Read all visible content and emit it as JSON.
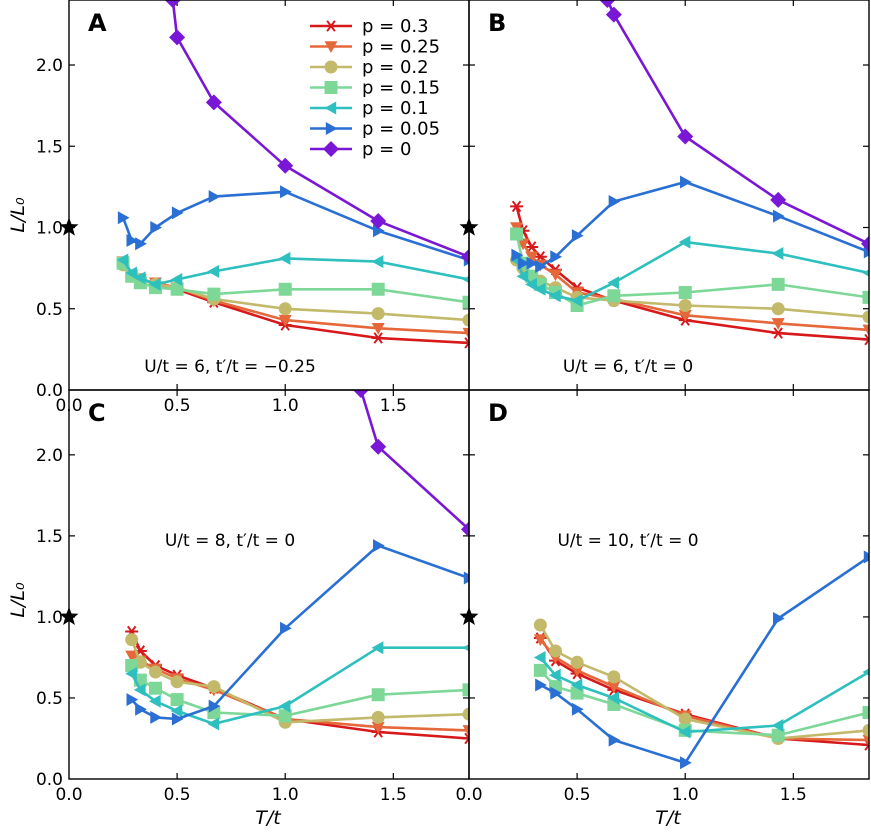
{
  "figure": {
    "ylabel": "L/L₀",
    "xlabel": "T/t"
  },
  "chart_data": [
    {
      "panel": "A",
      "type": "line",
      "annotation": "U/t = 6, t′/t = −0.25",
      "xlim": [
        0,
        1.85
      ],
      "ylim": [
        0,
        2.4
      ],
      "xticks": [
        0.0,
        0.5,
        1.0,
        1.5
      ],
      "xticklabels": [
        "0.0",
        "0.5",
        "1.0",
        "1.5"
      ],
      "yticks": [
        0.0,
        0.5,
        1.0,
        1.5,
        2.0
      ],
      "yticklabels": [
        "0.0",
        "0.5",
        "1.0",
        "1.5",
        "2.0"
      ],
      "reference_star": {
        "x": 0,
        "y": 1.0
      },
      "series": [
        {
          "name": "p = 0.3",
          "p": 0.3,
          "x": [
            0.4,
            0.5,
            0.67,
            1.0,
            1.43,
            1.85
          ],
          "y": [
            0.64,
            0.62,
            0.54,
            0.4,
            0.32,
            0.29
          ]
        },
        {
          "name": "p = 0.25",
          "p": 0.25,
          "x": [
            0.25,
            0.29,
            0.33,
            0.4,
            0.5,
            0.67,
            1.0,
            1.43,
            1.85
          ],
          "y": [
            0.79,
            0.71,
            0.68,
            0.66,
            0.63,
            0.55,
            0.43,
            0.38,
            0.35
          ]
        },
        {
          "name": "p = 0.2",
          "p": 0.2,
          "x": [
            0.25,
            0.29,
            0.33,
            0.4,
            0.5,
            0.67,
            1.0,
            1.43,
            1.85
          ],
          "y": [
            0.77,
            0.7,
            0.68,
            0.65,
            0.63,
            0.56,
            0.5,
            0.47,
            0.43
          ]
        },
        {
          "name": "p = 0.15",
          "p": 0.15,
          "x": [
            0.25,
            0.29,
            0.33,
            0.4,
            0.5,
            0.67,
            1.0,
            1.43,
            1.85
          ],
          "y": [
            0.78,
            0.7,
            0.66,
            0.63,
            0.62,
            0.59,
            0.62,
            0.62,
            0.54
          ]
        },
        {
          "name": "p = 0.1",
          "p": 0.1,
          "x": [
            0.25,
            0.29,
            0.33,
            0.4,
            0.5,
            0.67,
            1.0,
            1.43,
            1.85
          ],
          "y": [
            0.8,
            0.72,
            0.69,
            0.65,
            0.68,
            0.73,
            0.81,
            0.79,
            0.68
          ]
        },
        {
          "name": "p = 0.05",
          "p": 0.05,
          "x": [
            0.25,
            0.29,
            0.33,
            0.4,
            0.5,
            0.67,
            1.0,
            1.43,
            1.85
          ],
          "y": [
            1.06,
            0.92,
            0.9,
            1.0,
            1.09,
            1.19,
            1.22,
            0.98,
            0.8
          ]
        },
        {
          "name": "p = 0",
          "p": 0.0,
          "x": [
            0.48,
            0.5,
            0.67,
            1.0,
            1.43,
            1.85
          ],
          "y": [
            2.4,
            2.17,
            1.77,
            1.38,
            1.04,
            0.82
          ]
        }
      ]
    },
    {
      "panel": "B",
      "type": "line",
      "annotation": "U/t = 6, t′/t = 0",
      "xlim": [
        0,
        1.85
      ],
      "ylim": [
        0,
        2.4
      ],
      "reference_star": {
        "x": 0,
        "y": 1.0
      },
      "series": [
        {
          "name": "p = 0.3",
          "p": 0.3,
          "x": [
            0.22,
            0.25,
            0.29,
            0.33,
            0.4,
            0.5,
            0.67,
            1.0,
            1.43,
            1.85
          ],
          "y": [
            1.13,
            0.98,
            0.88,
            0.82,
            0.74,
            0.63,
            0.55,
            0.43,
            0.35,
            0.31
          ]
        },
        {
          "name": "p = 0.25",
          "p": 0.25,
          "x": [
            0.22,
            0.25,
            0.29,
            0.33,
            0.4,
            0.5,
            0.67,
            1.0,
            1.43,
            1.85
          ],
          "y": [
            1.0,
            0.9,
            0.82,
            0.77,
            0.71,
            0.6,
            0.56,
            0.46,
            0.41,
            0.37
          ]
        },
        {
          "name": "p = 0.2",
          "p": 0.2,
          "x": [
            0.22,
            0.25,
            0.29,
            0.33,
            0.4,
            0.5,
            0.67,
            1.0,
            1.43,
            1.85
          ],
          "y": [
            0.8,
            0.75,
            0.7,
            0.67,
            0.63,
            0.57,
            0.55,
            0.52,
            0.5,
            0.45
          ]
        },
        {
          "name": "p = 0.15",
          "p": 0.15,
          "x": [
            0.22,
            0.25,
            0.29,
            0.33,
            0.4,
            0.5,
            0.67,
            1.0,
            1.43,
            1.85
          ],
          "y": [
            0.96,
            0.78,
            0.7,
            0.65,
            0.6,
            0.52,
            0.58,
            0.6,
            0.65,
            0.57
          ]
        },
        {
          "name": "p = 0.1",
          "p": 0.1,
          "x": [
            0.22,
            0.25,
            0.29,
            0.33,
            0.4,
            0.5,
            0.67,
            1.0,
            1.43,
            1.85
          ],
          "y": [
            0.8,
            0.7,
            0.65,
            0.62,
            0.58,
            0.55,
            0.66,
            0.91,
            0.84,
            0.72
          ]
        },
        {
          "name": "p = 0.05",
          "p": 0.05,
          "x": [
            0.22,
            0.25,
            0.29,
            0.33,
            0.4,
            0.5,
            0.67,
            1.0,
            1.43,
            1.85
          ],
          "y": [
            0.83,
            0.78,
            0.78,
            0.76,
            0.82,
            0.95,
            1.16,
            1.28,
            1.07,
            0.85
          ]
        },
        {
          "name": "p = 0",
          "p": 0.0,
          "x": [
            0.64,
            0.67,
            1.0,
            1.43,
            1.85
          ],
          "y": [
            2.4,
            2.31,
            1.56,
            1.17,
            0.9
          ]
        }
      ]
    },
    {
      "panel": "C",
      "type": "line",
      "annotation": "U/t = 8, t′/t = 0",
      "xlim": [
        0,
        1.85
      ],
      "ylim": [
        0,
        2.4
      ],
      "xticks": [
        0.0,
        0.5,
        1.0,
        1.5
      ],
      "xticklabels": [
        "0.0",
        "0.5",
        "1.0",
        "1.5"
      ],
      "yticks": [
        0.0,
        0.5,
        1.0,
        1.5,
        2.0
      ],
      "yticklabels": [
        "0.0",
        "0.5",
        "1.0",
        "1.5",
        "2.0"
      ],
      "reference_star": {
        "x": 0,
        "y": 1.0
      },
      "series": [
        {
          "name": "p = 0.3",
          "p": 0.3,
          "x": [
            0.29,
            0.33,
            0.4,
            0.5,
            0.67,
            1.0,
            1.43,
            1.85
          ],
          "y": [
            0.91,
            0.79,
            0.7,
            0.64,
            0.56,
            0.37,
            0.29,
            0.25
          ]
        },
        {
          "name": "p = 0.25",
          "p": 0.25,
          "x": [
            0.29,
            0.33,
            0.4,
            0.5,
            0.67,
            1.0,
            1.43,
            1.85
          ],
          "y": [
            0.76,
            0.73,
            0.68,
            0.62,
            0.55,
            0.37,
            0.32,
            0.3
          ]
        },
        {
          "name": "p = 0.2",
          "p": 0.2,
          "x": [
            0.29,
            0.33,
            0.4,
            0.5,
            0.67,
            1.0,
            1.43,
            1.85
          ],
          "y": [
            0.86,
            0.72,
            0.66,
            0.6,
            0.57,
            0.35,
            0.38,
            0.4
          ]
        },
        {
          "name": "p = 0.15",
          "p": 0.15,
          "x": [
            0.29,
            0.33,
            0.4,
            0.5,
            0.67,
            1.0,
            1.43,
            1.85
          ],
          "y": [
            0.7,
            0.61,
            0.56,
            0.49,
            0.41,
            0.39,
            0.52,
            0.55
          ]
        },
        {
          "name": "p = 0.1",
          "p": 0.1,
          "x": [
            0.29,
            0.33,
            0.4,
            0.5,
            0.67,
            1.0,
            1.43,
            1.85
          ],
          "y": [
            0.65,
            0.55,
            0.48,
            0.42,
            0.34,
            0.45,
            0.81,
            0.81
          ]
        },
        {
          "name": "p = 0.05",
          "p": 0.05,
          "x": [
            0.29,
            0.33,
            0.4,
            0.5,
            0.67,
            1.0,
            1.43,
            1.85
          ],
          "y": [
            0.49,
            0.43,
            0.38,
            0.37,
            0.45,
            0.93,
            1.44,
            1.24
          ]
        },
        {
          "name": "p = 0",
          "p": 0.0,
          "x": [
            1.35,
            1.43,
            1.85
          ],
          "y": [
            2.4,
            2.05,
            1.54
          ]
        }
      ]
    },
    {
      "panel": "D",
      "type": "line",
      "annotation": "U/t = 10, t′/t = 0",
      "xlim": [
        0,
        1.85
      ],
      "ylim": [
        0,
        2.4
      ],
      "xticks": [
        0.0,
        0.5,
        1.0,
        1.5
      ],
      "xticklabels": [
        "0.0",
        "0.5",
        "1.0",
        "1.5"
      ],
      "reference_star": {
        "x": 0,
        "y": 1.0
      },
      "series": [
        {
          "name": "p = 0.3",
          "p": 0.3,
          "x": [
            0.33,
            0.4,
            0.5,
            0.67,
            1.0,
            1.43,
            1.85
          ],
          "y": [
            0.87,
            0.73,
            0.65,
            0.55,
            0.4,
            0.25,
            0.21
          ]
        },
        {
          "name": "p = 0.25",
          "p": 0.25,
          "x": [
            0.33,
            0.4,
            0.5,
            0.67,
            1.0,
            1.43,
            1.85
          ],
          "y": [
            0.86,
            0.75,
            0.67,
            0.57,
            0.39,
            0.25,
            0.24
          ]
        },
        {
          "name": "p = 0.2",
          "p": 0.2,
          "x": [
            0.33,
            0.4,
            0.5,
            0.67,
            1.0,
            1.43,
            1.85
          ],
          "y": [
            0.95,
            0.79,
            0.72,
            0.63,
            0.37,
            0.25,
            0.3
          ]
        },
        {
          "name": "p = 0.15",
          "p": 0.15,
          "x": [
            0.33,
            0.4,
            0.5,
            0.67,
            1.0,
            1.43,
            1.85
          ],
          "y": [
            0.67,
            0.57,
            0.53,
            0.46,
            0.3,
            0.27,
            0.41
          ]
        },
        {
          "name": "p = 0.1",
          "p": 0.1,
          "x": [
            0.33,
            0.4,
            0.5,
            0.67,
            1.0,
            1.43,
            1.85
          ],
          "y": [
            0.75,
            0.64,
            0.58,
            0.5,
            0.29,
            0.33,
            0.66
          ]
        },
        {
          "name": "p = 0.05",
          "p": 0.05,
          "x": [
            0.33,
            0.4,
            0.5,
            0.67,
            1.0,
            1.43,
            1.85
          ],
          "y": [
            0.58,
            0.53,
            0.43,
            0.24,
            0.1,
            0.99,
            1.37
          ]
        }
      ]
    }
  ],
  "legend": {
    "placement": "top-right of panel A",
    "entries": [
      {
        "label": "p = 0.3",
        "color": "#d7191c",
        "marker": "asterisk"
      },
      {
        "label": "p = 0.25",
        "color": "#e5683a",
        "marker": "triangle-down"
      },
      {
        "label": "p = 0.2",
        "color": "#c3b96a",
        "marker": "circle"
      },
      {
        "label": "p = 0.15",
        "color": "#7dd898",
        "marker": "square"
      },
      {
        "label": "p = 0.1",
        "color": "#2ebfbf",
        "marker": "triangle-left"
      },
      {
        "label": "p = 0.05",
        "color": "#2a6fd3",
        "marker": "triangle-right"
      },
      {
        "label": "p = 0",
        "color": "#7a16d6",
        "marker": "diamond"
      }
    ]
  }
}
